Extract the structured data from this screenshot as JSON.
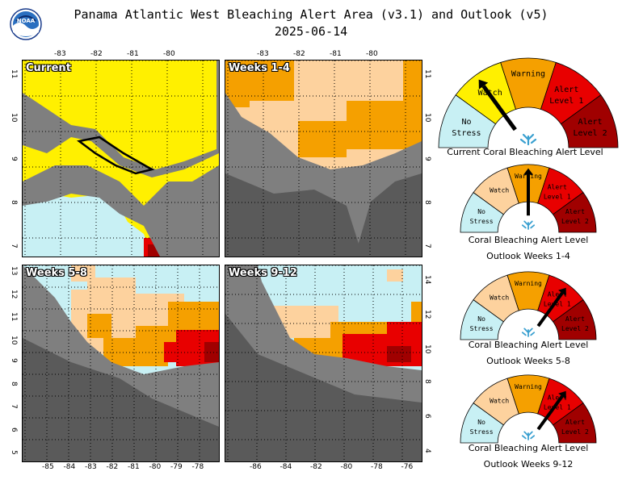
{
  "header": {
    "title": "Panama Atlantic West Bleaching Alert Area (v3.1) and Outlook (v5)",
    "date": "2025-06-14",
    "logo_text": "NOAA"
  },
  "colors": {
    "no_stress": "#c8f0f4",
    "watch": "#fff000",
    "watch_outlook": "#fdd29e",
    "warning": "#f5a000",
    "alert1": "#e80000",
    "alert2": "#a00000",
    "land": "#7f7f7f",
    "land_dark": "#5a5a5a",
    "grid": "#000000"
  },
  "maps": [
    {
      "label": "Current"
    },
    {
      "label": "Weeks 1-4"
    },
    {
      "label": "Weeks 5-8"
    },
    {
      "label": "Weeks 9-12"
    }
  ],
  "axes": {
    "top_lon": [
      "-83",
      "-82",
      "-81",
      "-80"
    ],
    "top_lon2": [
      "-83",
      "-82",
      "-81",
      "-80"
    ],
    "left_lat_top": [
      "11",
      "10",
      "9",
      "8",
      "7"
    ],
    "mid_lat_top": [
      "11",
      "10",
      "9",
      "8",
      "7"
    ],
    "left_lat_bottom": [
      "13",
      "12",
      "11",
      "10",
      "9",
      "8",
      "7",
      "6",
      "5"
    ],
    "mid_lat_bottom": [
      "14",
      "12",
      "10",
      "8",
      "6",
      "4"
    ],
    "bottom_lon_left": [
      "-85",
      "-84",
      "-83",
      "-82",
      "-81",
      "-80",
      "-79",
      "-78"
    ],
    "bottom_lon_right": [
      "-86",
      "-84",
      "-82",
      "-80",
      "-78",
      "-76"
    ]
  },
  "gauges": [
    {
      "caption_line1": "Current Coral Bleaching Alert Level",
      "caption_line2": "",
      "level": "Watch"
    },
    {
      "caption_line1": "Coral Bleaching Alert Level",
      "caption_line2": "Outlook Weeks 1-4",
      "level": "Warning"
    },
    {
      "caption_line1": "Coral Bleaching Alert Level",
      "caption_line2": "Outlook Weeks 5-8",
      "level": "Alert Level 1"
    },
    {
      "caption_line1": "Coral Bleaching Alert Level",
      "caption_line2": "Outlook Weeks 9-12",
      "level": "Alert Level 1"
    }
  ],
  "gauge_labels": {
    "no_stress": [
      "No",
      "Stress"
    ],
    "watch": "Watch",
    "warning": "Warning",
    "alert1": [
      "Alert",
      "Level 1"
    ],
    "alert2": [
      "Alert",
      "Level 2"
    ]
  }
}
